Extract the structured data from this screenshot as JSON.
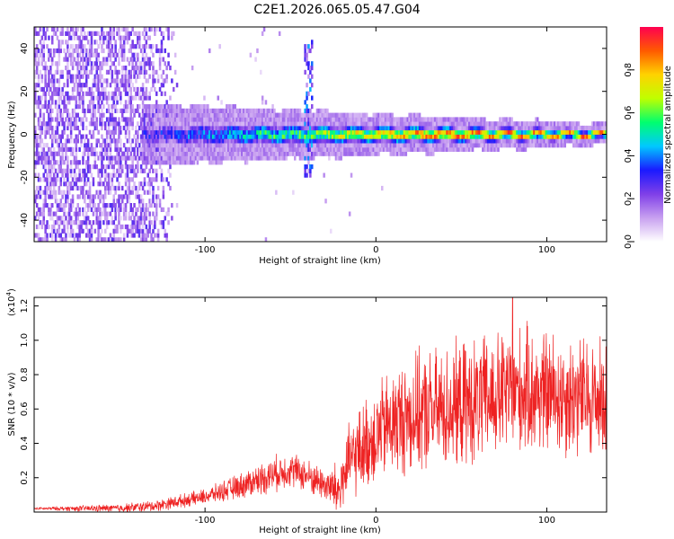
{
  "title": "C2E1.2026.065.05.47.G04",
  "chart_data": [
    {
      "type": "heatmap",
      "title": "C2E1.2026.065.05.47.G04",
      "xlabel": "Height of straight line (km)",
      "ylabel": "Frequency (Hz)",
      "xlim": [
        -200,
        135
      ],
      "ylim": [
        -50,
        50
      ],
      "x_ticks": [
        -100,
        0,
        100
      ],
      "y_ticks": [
        -40,
        -20,
        0,
        20,
        40
      ],
      "colorbar": {
        "label": "Normalized spectral amplitude",
        "range": [
          0,
          1
        ],
        "ticks": [
          0.0,
          0.2,
          0.4,
          0.6,
          0.8
        ],
        "colormap": [
          "#ffffff",
          "#c8a0f0",
          "#7f3fe8",
          "#1a1aff",
          "#00c8ff",
          "#00ff6e",
          "#bfff00",
          "#ffd200",
          "#ff5a00",
          "#ff0050"
        ]
      },
      "features": {
        "noise_region_x": [
          -200,
          -120
        ],
        "band_start_x": -137,
        "band_center_freq_hz": 0,
        "band_halfwidth_hz_at_start": 6,
        "band_halfwidth_hz_at_end": 2,
        "spike_near_x": -40,
        "spike_freq_range_hz": [
          -20,
          45
        ]
      }
    },
    {
      "type": "line",
      "xlabel": "Height of straight line (km)",
      "ylabel": "SNR (10 * v/v)",
      "y_scale_label": "(x10",
      "y_scale_exponent": "4",
      "xlim": [
        -200,
        135
      ],
      "ylim": [
        0,
        12500
      ],
      "x_ticks": [
        -100,
        0,
        100
      ],
      "y_ticks": [
        2000,
        4000,
        6000,
        8000,
        10000,
        12000
      ],
      "y_tick_labels": [
        "0.2",
        "0.4",
        "0.6",
        "0.8",
        "1.0",
        "1.2"
      ],
      "series": [
        {
          "name": "SNR",
          "color": "#ee2222",
          "trend_x": [
            -200,
            -150,
            -130,
            -100,
            -80,
            -60,
            -50,
            -40,
            -30,
            -22,
            -20,
            -15,
            -10,
            -5,
            0,
            10,
            20,
            30,
            40,
            50,
            60,
            70,
            80,
            90,
            100,
            110,
            120,
            135
          ],
          "trend_y": [
            200,
            220,
            350,
            900,
            1500,
            2200,
            2500,
            2100,
            1600,
            1200,
            1800,
            3000,
            3500,
            4000,
            4500,
            5200,
            5600,
            5800,
            6000,
            6200,
            6400,
            6700,
            7000,
            7000,
            6900,
            6800,
            6700,
            6500
          ],
          "spread_x": [
            -200,
            -100,
            -60,
            -30,
            -20,
            0,
            20,
            60,
            100,
            135
          ],
          "spread_y": [
            80,
            500,
            1200,
            1100,
            2300,
            3400,
            4000,
            4300,
            4300,
            4100
          ],
          "peak_x": 80,
          "peak_y": 12500
        }
      ]
    }
  ]
}
